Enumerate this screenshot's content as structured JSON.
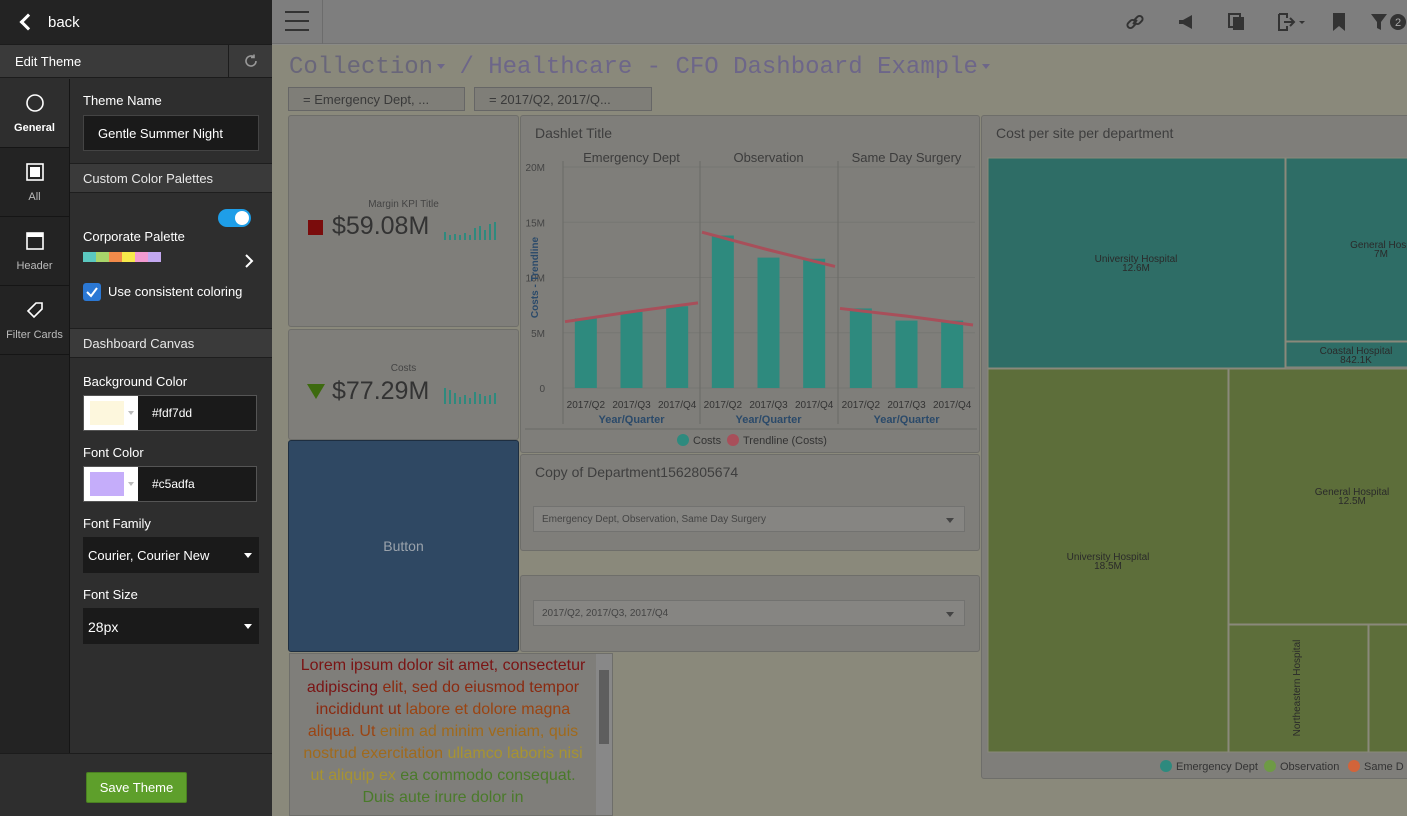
{
  "panel": {
    "back_label": "back",
    "edit_title": "Edit Theme",
    "rail": [
      {
        "label": "General",
        "icon": "circle-icon"
      },
      {
        "label": "All",
        "icon": "square-icon"
      },
      {
        "label": "Header",
        "icon": "header-icon"
      },
      {
        "label": "Filter Cards",
        "icon": "tag-icon"
      }
    ],
    "theme_name_label": "Theme Name",
    "theme_name_value": "Gentle Summer Night",
    "custom_palettes_section": "Custom Color Palettes",
    "corporate_palette_label": "Corporate Palette",
    "palette_colors": [
      "#5bc8c0",
      "#a8d56a",
      "#f28b4a",
      "#f7ea4a",
      "#f29ad0",
      "#c3a8f0"
    ],
    "use_consistent_label": "Use consistent coloring",
    "canvas_section": "Dashboard Canvas",
    "bg_color_label": "Background Color",
    "bg_color_value": "#fdf7dd",
    "font_color_label": "Font Color",
    "font_color_value": "#c5adfa",
    "font_family_label": "Font Family",
    "font_family_value": "Courier, Courier New",
    "font_size_label": "Font Size",
    "font_size_value": "28px",
    "save_label": "Save Theme"
  },
  "dashboard": {
    "breadcrumb_collection": "Collection",
    "breadcrumb_sep": "/",
    "breadcrumb_title": "Healthcare - CFO Dashboard Example",
    "filter_badge": "2",
    "filters": [
      "= Emergency Dept, ...",
      "= 2017/Q2, 2017/Q..."
    ],
    "kpi1_title": "Margin KPI Title",
    "kpi1_value": "$59.08M",
    "kpi2_title": "Costs",
    "kpi2_value": "$77.29M",
    "button_label": "Button",
    "dashlet_title": "Dashlet Title",
    "dept_slicer_title": "Copy of Department1562805674",
    "dept_slicer_value": "Emergency Dept, Observation, Same Day Surgery",
    "quarter_slicer_value": "2017/Q2, 2017/Q3, 2017/Q4",
    "treemap_title": "Cost per site per department",
    "lorem_text": "Lorem ipsum dolor sit amet, consectetur adipiscing elit, sed do eiusmod tempor incididunt ut labore et dolore magna aliqua. Ut enim ad minim veniam, quis nostrud exercitation ullamco laboris nisi ut aliquip ex ea commodo consequat. Duis aute irure dolor in"
  },
  "chart_data": [
    {
      "type": "bar",
      "title": "Dashlet Title",
      "ylabel": "Costs - Trendline",
      "xlabel": "Year/Quarter",
      "ylim": [
        0,
        20
      ],
      "y_ticks": [
        "0",
        "5M",
        "10M",
        "15M",
        "20M"
      ],
      "panels": [
        "Emergency Dept",
        "Observation",
        "Same Day Surgery"
      ],
      "categories": [
        "2017/Q2",
        "2017/Q3",
        "2017/Q4"
      ],
      "series": [
        {
          "name": "Costs",
          "color": "#2e8a7e",
          "values": [
            [
              6.3,
              6.9,
              7.4
            ],
            [
              13.8,
              11.8,
              11.7
            ],
            [
              7.2,
              6.1,
              6.1
            ]
          ]
        },
        {
          "name": "Trendline (Costs)",
          "color": "#a84f5a",
          "values": [
            [
              6.0,
              6.9,
              7.7
            ],
            [
              14.1,
              12.5,
              11.0
            ],
            [
              7.2,
              6.5,
              5.7
            ]
          ]
        }
      ],
      "legend": "bottom"
    },
    {
      "type": "treemap",
      "title": "Cost per site per department",
      "legend": [
        "Emergency Dept",
        "Observation",
        "Same D"
      ],
      "legend_colors": [
        "#2e8a7e",
        "#6e9a45",
        "#d2643a"
      ],
      "nodes": [
        {
          "group": "Emergency Dept",
          "label": "University Hospital",
          "value": "12.6M"
        },
        {
          "group": "Emergency Dept",
          "label": "General Hosp",
          "value": "7M"
        },
        {
          "group": "Emergency Dept",
          "label": "Coastal Hospital",
          "value": "842.1K"
        },
        {
          "group": "Observation",
          "label": "University Hospital",
          "value": "18.5M"
        },
        {
          "group": "Observation",
          "label": "General Hospital",
          "value": "12.5M"
        },
        {
          "group": "Observation",
          "label": "Northeastern Hospital",
          "value": ""
        }
      ]
    }
  ]
}
